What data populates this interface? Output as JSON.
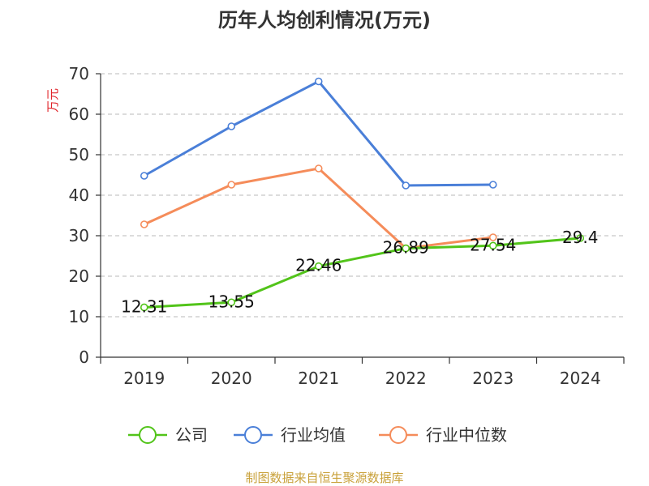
{
  "chart_data": {
    "type": "line",
    "title": "历年人均创利情况(万元)",
    "xlabel": "",
    "ylabel": "万元",
    "ylim": [
      0,
      70
    ],
    "yticks": [
      0,
      10,
      20,
      30,
      40,
      50,
      60,
      70
    ],
    "categories": [
      "2019",
      "2020",
      "2021",
      "2022",
      "2023",
      "2024"
    ],
    "grid": true,
    "legend_position": "bottom",
    "series": [
      {
        "name": "公司",
        "color": "#52c41a",
        "values": [
          12.31,
          13.55,
          22.46,
          26.89,
          27.54,
          29.4
        ],
        "labels": [
          "12.31",
          "13.55",
          "22.46",
          "26.89",
          "27.54",
          "29.4"
        ]
      },
      {
        "name": "行业均值",
        "color": "#4a7fd8",
        "values": [
          44.8,
          57,
          68.1,
          42.4,
          42.6,
          null
        ]
      },
      {
        "name": "行业中位数",
        "color": "#f58c5a",
        "values": [
          32.8,
          42.6,
          46.6,
          26.9,
          29.6,
          null
        ]
      }
    ],
    "source": "制图数据来自恒生聚源数据库"
  }
}
